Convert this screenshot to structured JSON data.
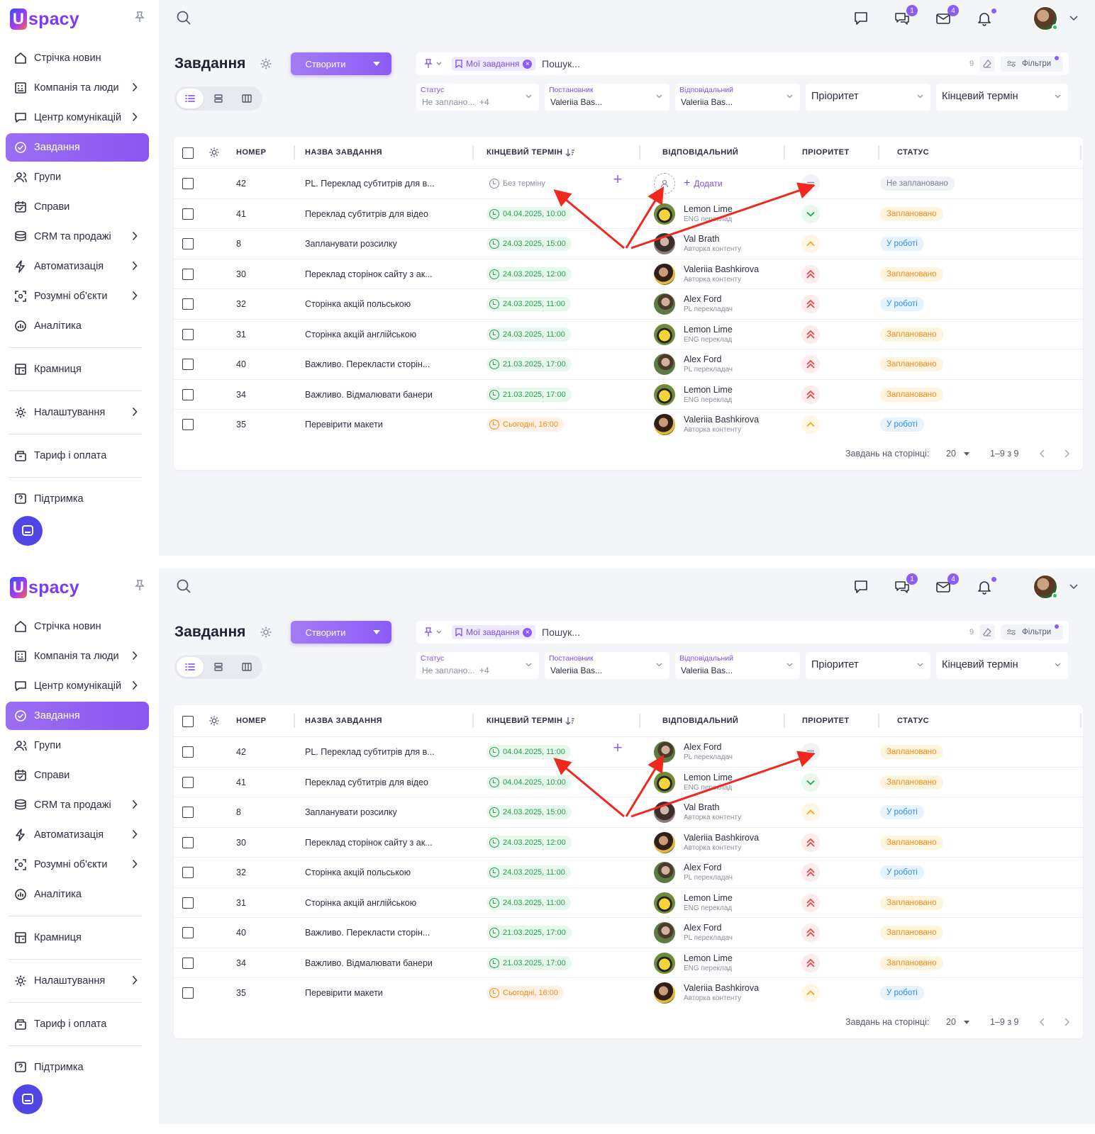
{
  "app": {
    "logo_text": "spacy",
    "accent": "#8b5cf6"
  },
  "sidebar": {
    "items": [
      {
        "label": "Стрічка новин",
        "icon": "home-icon",
        "has_children": false
      },
      {
        "label": "Компанія та люди",
        "icon": "company-icon",
        "has_children": true
      },
      {
        "label": "Центр комунікацій",
        "icon": "chat-center-icon",
        "has_children": true
      },
      {
        "label": "Завдання",
        "icon": "task-check-icon",
        "has_children": false,
        "active": true
      },
      {
        "label": "Групи",
        "icon": "groups-icon",
        "has_children": false
      },
      {
        "label": "Справи",
        "icon": "calendar-icon",
        "has_children": false
      },
      {
        "label": "CRM та продажі",
        "icon": "crm-icon",
        "has_children": true
      },
      {
        "label": "Автоматизація",
        "icon": "lightning-icon",
        "has_children": true
      },
      {
        "label": "Розумні об'єкти",
        "icon": "smart-objects-icon",
        "has_children": true
      },
      {
        "label": "Аналітика",
        "icon": "analytics-icon",
        "has_children": false
      }
    ],
    "store": "Крамниця",
    "settings": "Налаштування",
    "billing": "Тариф і оплата",
    "support": "Підтримка"
  },
  "topbar": {
    "badges": {
      "chats": "1",
      "mail": "4"
    }
  },
  "header": {
    "title": "Завдання",
    "create_label": "Створити"
  },
  "search": {
    "tag": "Мої завдання",
    "placeholder": "Пошук...",
    "count": "9",
    "filters_label": "Фільтри"
  },
  "filters": {
    "status": {
      "label": "Статус",
      "value": "Не заплано...",
      "extra": "+4"
    },
    "creator": {
      "label": "Постановник",
      "value": "Valeriia Bas..."
    },
    "responsible": {
      "label": "Відповідальний",
      "value": "Valeriia Bas..."
    },
    "priority": {
      "placeholder": "Пріоритет"
    },
    "deadline": {
      "placeholder": "Кінцевий термін"
    }
  },
  "table": {
    "columns": {
      "number": "НОМЕР",
      "name": "НАЗВА ЗАВДАННЯ",
      "deadline": "КІНЦЕВИЙ ТЕРМІН",
      "responsible": "ВІДПОВІДАЛЬНИЙ",
      "priority": "ПРІОРИТЕТ",
      "status": "СТАТУС"
    },
    "add_label": "Додати",
    "footer": {
      "per_page_label": "Завдань на сторінці:",
      "per_page": "20",
      "range": "1–9 з 9"
    }
  },
  "panels": [
    {
      "rows": [
        {
          "num": "42",
          "name": "PL. Переклад субтитрів для в...",
          "deadline": "Без терміну",
          "deadline_kind": "none",
          "person": null,
          "role": null,
          "avatar": "empty",
          "priority": "normal",
          "status": "Не заплановано",
          "status_kind": "none",
          "show_plus": true
        },
        {
          "num": "41",
          "name": "Переклад субтитрів для відео",
          "deadline": "04.04.2025, 10:00",
          "deadline_kind": "ok",
          "person": "Lemon Lime",
          "role": "ENG переклад",
          "avatar": "lemon",
          "priority": "low",
          "status": "Заплановано",
          "status_kind": "planned"
        },
        {
          "num": "8",
          "name": "Запланувати розсилку",
          "deadline": "24.03.2025, 15:00",
          "deadline_kind": "ok",
          "person": "Val Brath",
          "role": "Авторка контенту",
          "avatar": "val",
          "priority": "high",
          "status": "У роботі",
          "status_kind": "work"
        },
        {
          "num": "30",
          "name": "Переклад сторінок сайту з ак...",
          "deadline": "24.03.2025, 12:00",
          "deadline_kind": "ok",
          "person": "Valeriia Bashkirova",
          "role": "Авторка контенту",
          "avatar": "valeriia",
          "priority": "urgent",
          "status": "Заплановано",
          "status_kind": "planned"
        },
        {
          "num": "32",
          "name": "Сторінка акцій польською",
          "deadline": "24.03.2025, 11:00",
          "deadline_kind": "ok",
          "person": "Alex Ford",
          "role": "PL перекладач",
          "avatar": "alex",
          "priority": "urgent",
          "status": "У роботі",
          "status_kind": "work"
        },
        {
          "num": "31",
          "name": "Сторінка акцій англійською",
          "deadline": "24.03.2025, 11:00",
          "deadline_kind": "ok",
          "person": "Lemon Lime",
          "role": "ENG переклад",
          "avatar": "lemon",
          "priority": "urgent",
          "status": "Заплановано",
          "status_kind": "planned"
        },
        {
          "num": "40",
          "name": "Важливо. Перекласти сторін...",
          "deadline": "21.03.2025, 17:00",
          "deadline_kind": "ok",
          "person": "Alex Ford",
          "role": "PL перекладач",
          "avatar": "alex",
          "priority": "urgent",
          "status": "Заплановано",
          "status_kind": "planned"
        },
        {
          "num": "34",
          "name": "Важливо. Відмалювати банери",
          "deadline": "21.03.2025, 17:00",
          "deadline_kind": "ok",
          "person": "Lemon Lime",
          "role": "ENG переклад",
          "avatar": "lemon",
          "priority": "urgent",
          "status": "Заплановано",
          "status_kind": "planned"
        },
        {
          "num": "35",
          "name": "Перевірити макети",
          "deadline": "Сьогодні, 16:00",
          "deadline_kind": "today",
          "person": "Valeriia Bashkirova",
          "role": "Авторка контенту",
          "avatar": "valeriia",
          "priority": "high",
          "status": "У роботі",
          "status_kind": "work"
        }
      ]
    },
    {
      "rows": [
        {
          "num": "42",
          "name": "PL. Переклад субтитрів для в...",
          "deadline": "04.04.2025, 11:00",
          "deadline_kind": "ok",
          "person": "Alex Ford",
          "role": "PL перекладач",
          "avatar": "alex",
          "priority": "normal",
          "status": "Заплановано",
          "status_kind": "planned",
          "show_plus": true
        },
        {
          "num": "41",
          "name": "Переклад субтитрів для відео",
          "deadline": "04.04.2025, 10:00",
          "deadline_kind": "ok",
          "person": "Lemon Lime",
          "role": "ENG переклад",
          "avatar": "lemon",
          "priority": "low",
          "status": "Заплановано",
          "status_kind": "planned"
        },
        {
          "num": "8",
          "name": "Запланувати розсилку",
          "deadline": "24.03.2025, 15:00",
          "deadline_kind": "ok",
          "person": "Val Brath",
          "role": "Авторка контенту",
          "avatar": "val",
          "priority": "high",
          "status": "У роботі",
          "status_kind": "work"
        },
        {
          "num": "30",
          "name": "Переклад сторінок сайту з ак...",
          "deadline": "24.03.2025, 12:00",
          "deadline_kind": "ok",
          "person": "Valeriia Bashkirova",
          "role": "Авторка контенту",
          "avatar": "valeriia",
          "priority": "urgent",
          "status": "Заплановано",
          "status_kind": "planned"
        },
        {
          "num": "32",
          "name": "Сторінка акцій польською",
          "deadline": "24.03.2025, 11:00",
          "deadline_kind": "ok",
          "person": "Alex Ford",
          "role": "PL перекладач",
          "avatar": "alex",
          "priority": "urgent",
          "status": "У роботі",
          "status_kind": "work"
        },
        {
          "num": "31",
          "name": "Сторінка акцій англійською",
          "deadline": "24.03.2025, 11:00",
          "deadline_kind": "ok",
          "person": "Lemon Lime",
          "role": "ENG переклад",
          "avatar": "lemon",
          "priority": "urgent",
          "status": "Заплановано",
          "status_kind": "planned"
        },
        {
          "num": "40",
          "name": "Важливо. Перекласти сторін...",
          "deadline": "21.03.2025, 17:00",
          "deadline_kind": "ok",
          "person": "Alex Ford",
          "role": "PL перекладач",
          "avatar": "alex",
          "priority": "urgent",
          "status": "Заплановано",
          "status_kind": "planned"
        },
        {
          "num": "34",
          "name": "Важливо. Відмалювати банери",
          "deadline": "21.03.2025, 17:00",
          "deadline_kind": "ok",
          "person": "Lemon Lime",
          "role": "ENG переклад",
          "avatar": "lemon",
          "priority": "urgent",
          "status": "Заплановано",
          "status_kind": "planned"
        },
        {
          "num": "35",
          "name": "Перевірити макети",
          "deadline": "Сьогодні, 16:00",
          "deadline_kind": "today",
          "person": "Valeriia Bashkirova",
          "role": "Авторка контенту",
          "avatar": "valeriia",
          "priority": "high",
          "status": "У роботі",
          "status_kind": "work"
        }
      ]
    }
  ]
}
